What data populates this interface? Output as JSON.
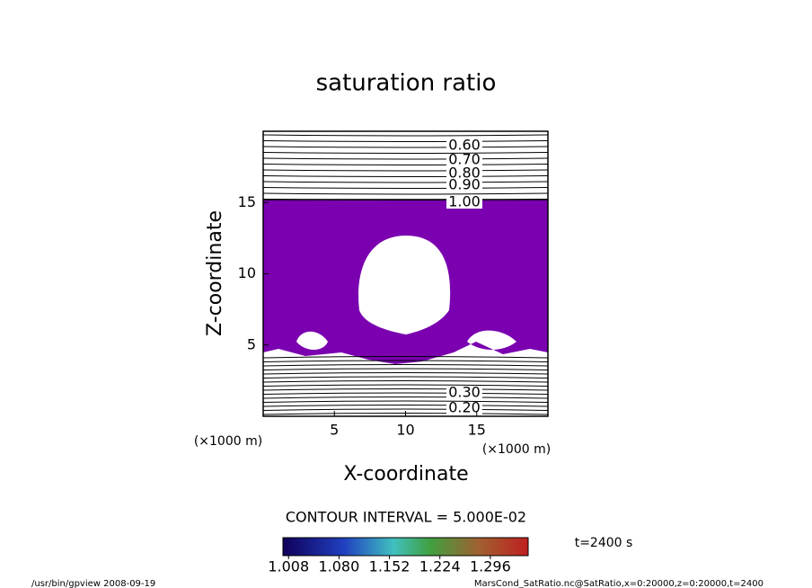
{
  "chart_data": {
    "type": "contour",
    "title": "saturation ratio",
    "x_label": "X-coordinate",
    "y_label": "Z-coordinate",
    "x_unit": "(×1000 m)",
    "y_unit": "(×1000 m)",
    "xlim": [
      0,
      20
    ],
    "ylim": [
      0,
      20
    ],
    "xticks": [
      5,
      10,
      15
    ],
    "yticks": [
      5,
      10,
      15
    ],
    "contour_labels_top": [
      {
        "value": 0.6,
        "label": "0.60"
      },
      {
        "value": 0.7,
        "label": "0.70"
      },
      {
        "value": 0.8,
        "label": "0.80"
      },
      {
        "value": 0.9,
        "label": "0.90"
      },
      {
        "value": 1.0,
        "label": "1.00"
      }
    ],
    "contour_labels_bottom": [
      {
        "value": 0.3,
        "label": "0.30"
      },
      {
        "value": 0.2,
        "label": "0.20"
      }
    ],
    "contour_interval_text": "CONTOUR INTERVAL = 5.000E-02",
    "shade_color": "#7a00b0",
    "colorbar_lim": [
      1.0,
      1.35
    ],
    "colorbar_ticks": [
      1.008,
      {
        "value": 1.08,
        "label": "1.080"
      },
      1.152,
      1.224,
      1.296
    ],
    "time_text": "t=2400 s",
    "footer_left": "/usr/bin/gpview  2008-09-19",
    "footer_right": "MarsCond_SatRatio.nc@SatRatio,x=0:20000,z=0:20000,t=2400"
  }
}
